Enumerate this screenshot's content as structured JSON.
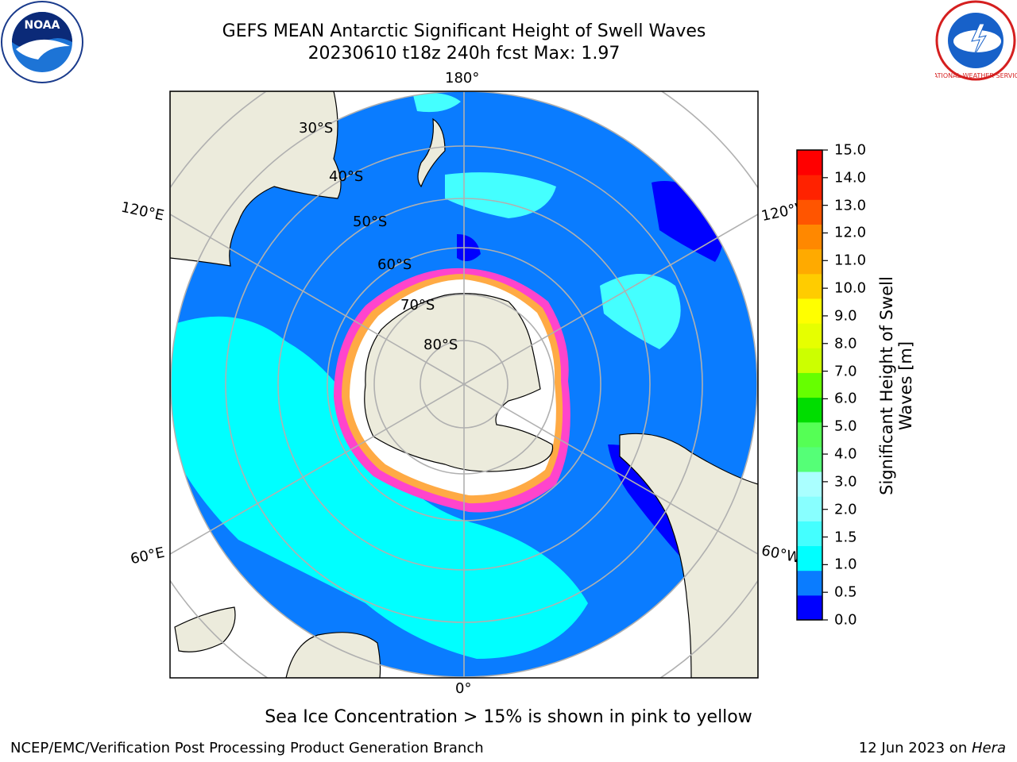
{
  "header": {
    "title_line1": "GEFS MEAN Antarctic Significant Height of Swell Waves",
    "title_line2": "20230610 t18z 240h fcst   Max: 1.97"
  },
  "logos": {
    "left": {
      "name": "noaa-logo",
      "text": "NOAA"
    },
    "right": {
      "name": "national-weather-service-logo",
      "text": "NATIONAL WEATHER SERVICE"
    }
  },
  "map": {
    "projection": "south-polar-stereographic",
    "longitude_labels": {
      "top": "180°",
      "bottom": "0°",
      "upper_left": "120°E",
      "upper_right": "120°W",
      "lower_left": "60°E",
      "lower_right": "60°W"
    },
    "latitude_labels": [
      "30°S",
      "40°S",
      "50°S",
      "60°S",
      "70°S",
      "80°S"
    ],
    "colors": {
      "land": "#ecebdc",
      "ocean_low": "#0000ff",
      "ocean_mid": "#0a7cff",
      "ocean_swell": "#00ffff",
      "ice_edge": "#ff44cc",
      "ice_inner": "#ffffff",
      "grid": "#b0b0b0"
    }
  },
  "colorbar": {
    "label_line1": "Significant Height of Swell",
    "label_line2": "Waves [m]",
    "ticks": [
      "0.0",
      "0.5",
      "1.0",
      "1.5",
      "2.0",
      "3.0",
      "4.0",
      "5.0",
      "6.0",
      "7.0",
      "8.0",
      "9.0",
      "10.0",
      "11.0",
      "12.0",
      "13.0",
      "14.0",
      "15.0"
    ],
    "colors": [
      "#0000ff",
      "#0a7cff",
      "#00ffff",
      "#44ffff",
      "#88ffff",
      "#aaffff",
      "#55ff77",
      "#55ff55",
      "#00dd00",
      "#66ff00",
      "#ccff00",
      "#e6ff00",
      "#ffff00",
      "#ffcc00",
      "#ffaa00",
      "#ff8800",
      "#ff5500",
      "#ff2200",
      "#ff0000"
    ]
  },
  "footer": {
    "note": "Sea Ice Concentration > 15% is shown in pink to yellow",
    "left": "NCEP/EMC/Verification Post Processing Product Generation Branch",
    "right_prefix": "12 Jun 2023 on ",
    "right_host": "Hera"
  }
}
